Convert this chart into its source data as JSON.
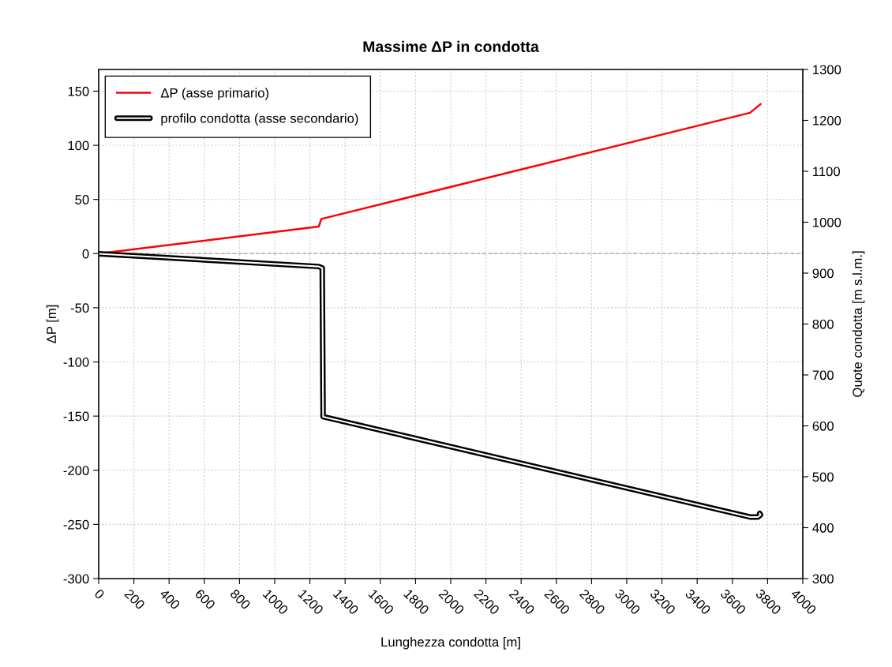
{
  "chart_data": {
    "type": "line",
    "title": "Massime ΔP in condotta",
    "xlabel": "Lunghezza condotta [m]",
    "ylabel": "ΔP [m]",
    "y2label": "Quote condotta [m s.l.m.]",
    "series": [
      {
        "name": "ΔP (asse primario)",
        "color": "#ff0000",
        "x": [
          0,
          1250,
          1265,
          3700,
          3760
        ],
        "values": [
          0,
          25,
          32,
          130,
          138
        ]
      },
      {
        "name": "profilo condotta (asse secondario)",
        "color": "#000000",
        "axis": "y2",
        "x": [
          0,
          1250,
          1270,
          1275,
          3700,
          3745,
          3760,
          3755
        ],
        "values": [
          938,
          913,
          910,
          618,
          421,
          421,
          425,
          428
        ]
      }
    ],
    "xlim": [
      0,
      4000
    ],
    "xticks": [
      0,
      200,
      400,
      600,
      800,
      1000,
      1200,
      1400,
      1600,
      1800,
      2000,
      2200,
      2400,
      2600,
      2800,
      3000,
      3200,
      3400,
      3600,
      3800,
      4000
    ],
    "ylim": [
      -300,
      170
    ],
    "yticks": [
      -300,
      -250,
      -200,
      -150,
      -100,
      -50,
      0,
      50,
      100,
      150
    ],
    "y2lim": [
      300,
      1300
    ],
    "y2ticks": [
      300,
      400,
      500,
      600,
      700,
      800,
      900,
      1000,
      1100,
      1200,
      1300
    ],
    "ref_lines": [
      {
        "axis": "y",
        "value": 0,
        "color": "#a6a6a6",
        "line_style": "dashed"
      }
    ],
    "grid": true,
    "legend": "top left"
  }
}
